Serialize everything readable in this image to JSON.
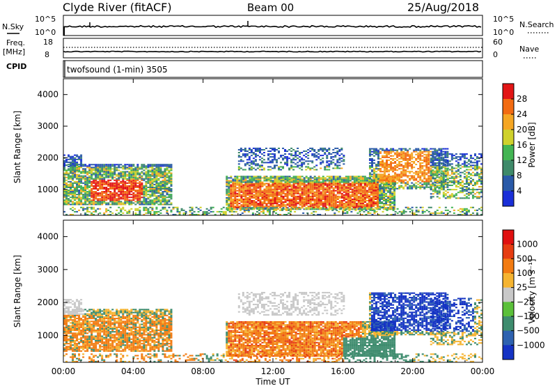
{
  "header": {
    "title": "Clyde River (fitACF)",
    "beam": "Beam 00",
    "date": "25/Aug/2018"
  },
  "noise_panel": {
    "left_label": "N.Sky",
    "right_label": "N.Search",
    "y_ticks_left": [
      "10^5",
      "10^0"
    ],
    "y_ticks_right": [
      "10^5",
      "10^0"
    ]
  },
  "freq_panel": {
    "left_label_1": "Freq.",
    "left_label_2": "[MHz]",
    "cpid_label": "CPID",
    "right_label": "Nave",
    "y_ticks_left": [
      "18",
      "8"
    ],
    "y_ticks_right": [
      "60",
      "0"
    ]
  },
  "cpid_text": "twofsound (1-min) 3505",
  "chart_data": [
    {
      "type": "heatmap",
      "name": "power",
      "ylabel": "Slant Range [km]",
      "ylim": [
        180,
        4500
      ],
      "y_ticks": [
        "4000",
        "3000",
        "2000",
        "1000"
      ],
      "colorbar_label": "Power [dB]",
      "colorbar_ticks": [
        "28",
        "24",
        "20",
        "16",
        "12",
        "8",
        "4"
      ],
      "colors": [
        "#1a2fd8",
        "#2a5aa8",
        "#3f8a6a",
        "#43b553",
        "#cfd12c",
        "#f5a623",
        "#f26b12",
        "#e21515"
      ]
    },
    {
      "type": "heatmap",
      "name": "velocity",
      "ylabel": "Slant Range [km]",
      "ylim": [
        180,
        4500
      ],
      "y_ticks": [
        "4000",
        "3000",
        "2000",
        "1000"
      ],
      "colorbar_label": "Velocity [m s⁻¹]",
      "colorbar_ticks": [
        "1000",
        "500",
        "100",
        "25",
        "−25",
        "−100",
        "−500",
        "−1000"
      ],
      "colors": [
        "#1533c4",
        "#2e62b0",
        "#3e8c6e",
        "#5bc03a",
        "#c8c8c8",
        "#f5b431",
        "#f27b12",
        "#e63d12",
        "#e01010"
      ]
    }
  ],
  "x_axis": {
    "ticks": [
      "00:00",
      "04:00",
      "08:00",
      "12:00",
      "16:00",
      "20:00",
      "00:00"
    ],
    "label": "Time UT"
  }
}
